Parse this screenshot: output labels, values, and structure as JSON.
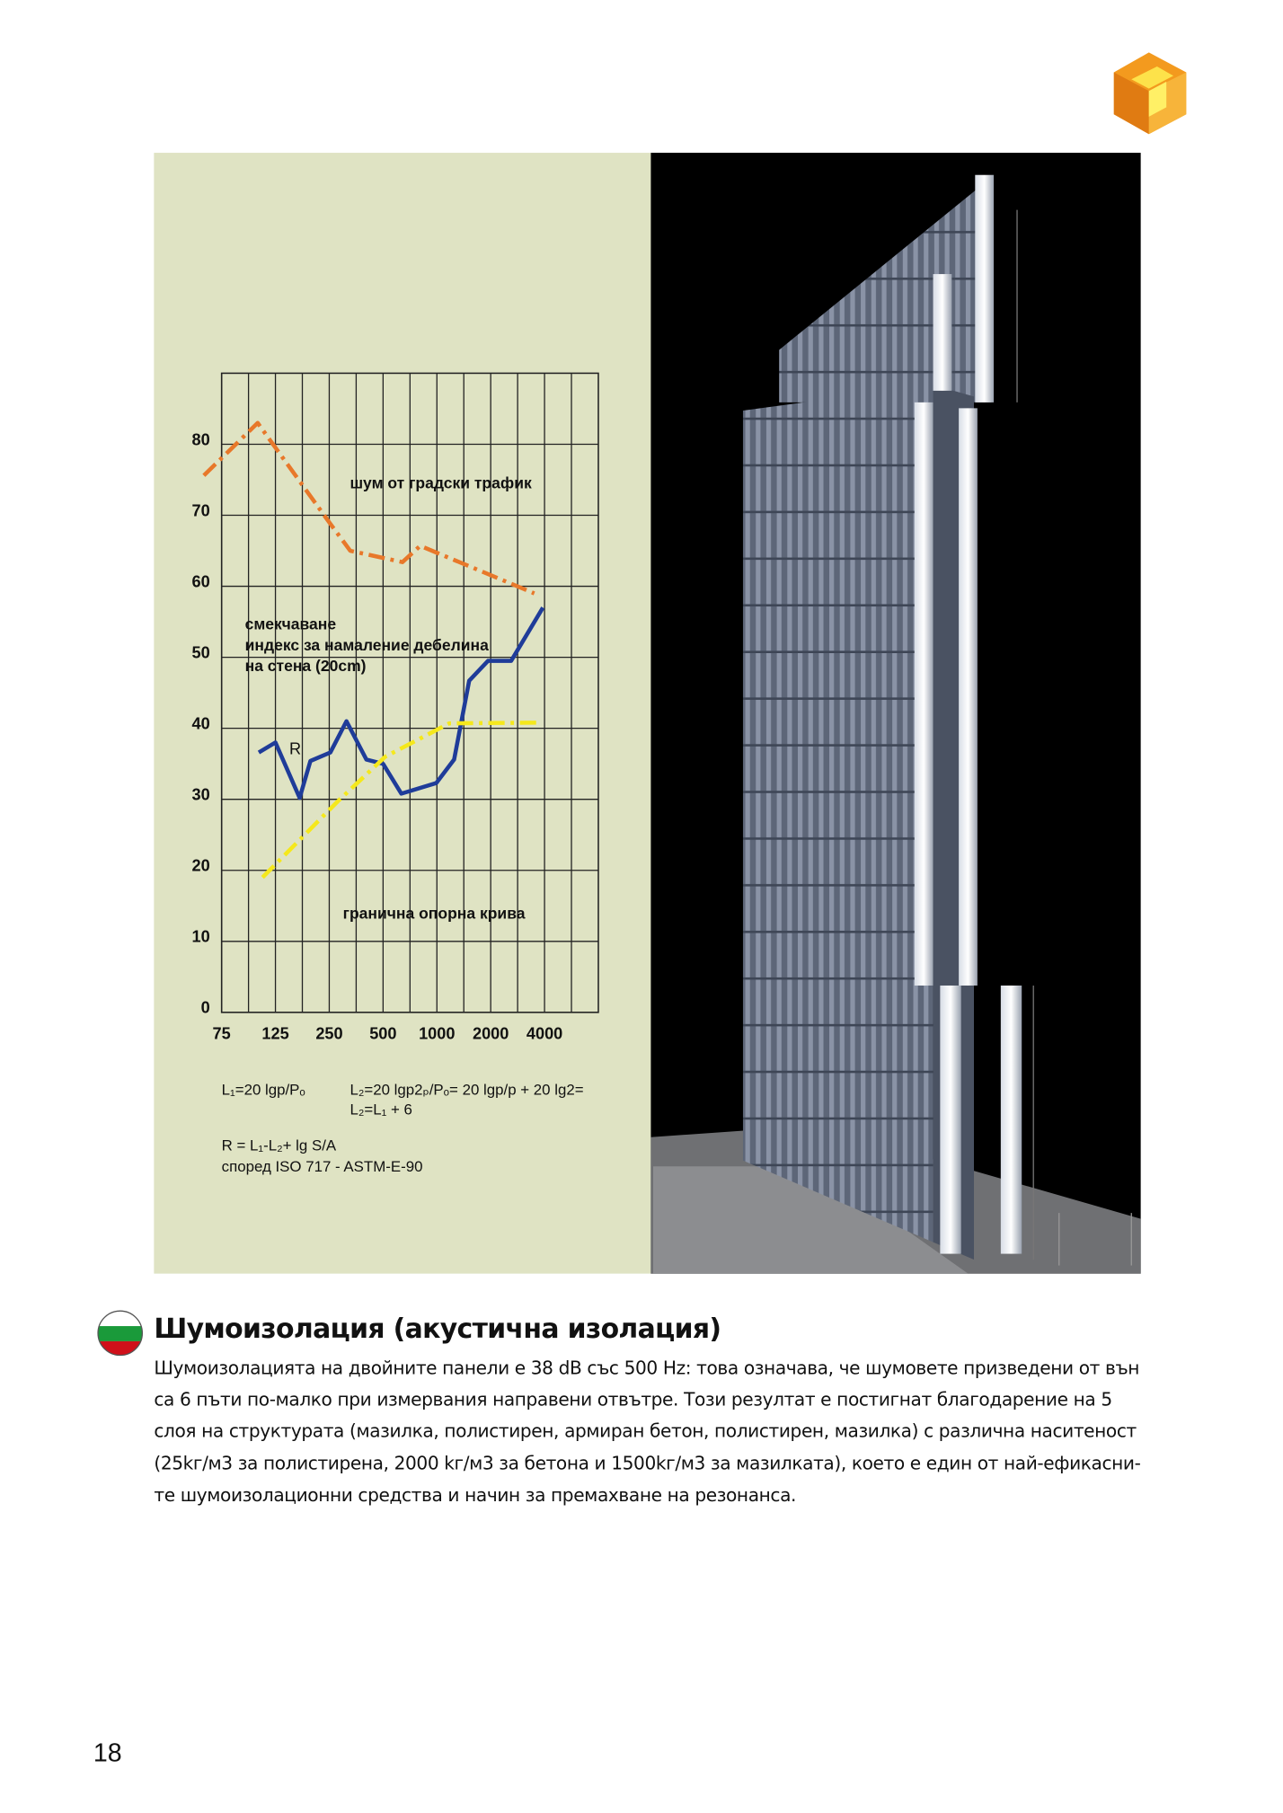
{
  "chart_data": {
    "type": "line",
    "xlim": [
      0,
      7
    ],
    "ylim": [
      0,
      90
    ],
    "xticks": [
      {
        "value": 0,
        "label": "75"
      },
      {
        "value": 1,
        "label": "125"
      },
      {
        "value": 2,
        "label": "250"
      },
      {
        "value": 3,
        "label": "500"
      },
      {
        "value": 4,
        "label": "1000"
      },
      {
        "value": 5,
        "label": "2000"
      },
      {
        "value": 6,
        "label": "4000"
      }
    ],
    "yticks": [
      0,
      10,
      20,
      30,
      40,
      50,
      60,
      70,
      80
    ],
    "grid": true,
    "series": [
      {
        "name": "шум от градски трафик",
        "color": "#e8782a",
        "style": "dash-dot",
        "x": [
          -0.33,
          0.67,
          2,
          2.39,
          3.36,
          3.69,
          5.81
        ],
        "values": [
          75.6,
          83,
          69,
          65,
          63.4,
          65.7,
          59
        ]
      },
      {
        "name": "R",
        "color": "#1f3c99",
        "style": "solid",
        "x": [
          0.69,
          1,
          1.45,
          1.65,
          2.02,
          2.32,
          2.69,
          3,
          3.34,
          3.99,
          4.32,
          4.6,
          4.95,
          5.38,
          5.97
        ],
        "values": [
          36.6,
          38,
          30.2,
          35.4,
          36.6,
          41,
          35.6,
          35,
          30.8,
          32.3,
          35.6,
          46.7,
          49.5,
          49.5,
          57
        ]
      },
      {
        "name": "гранична опорна крива",
        "color": "#f5e81c",
        "style": "dash-dot",
        "x": [
          0.76,
          2.17,
          3.04,
          4.23,
          5.92
        ],
        "values": [
          19,
          29.8,
          36,
          40.7,
          40.8
        ]
      }
    ],
    "annotations": [
      "смекчаване",
      "индекс за намаление дебелина",
      "на стена (20cm)"
    ],
    "formulas": [
      "L₁=20 lgp/Pₒ",
      "L₂=20 lgp2ₚ/Pₒ= 20 lgp/p + 20 lg2=",
      "L₂=L₁ + 6",
      "R = L₁-L₂+ lg S/A",
      "според ISO 717 - ASTM-E-90"
    ]
  },
  "section": {
    "heading": "Шумоизолация (акустична изолация)",
    "lines": [
      "Шумоизолацията на двойните панели е 38 dB със 500 Hz: това означава, че шумовете призведени от вън",
      "са 6 пъти по-малко при измервания направени отвътре. Този резултат е постигнат благодарение на 5",
      "слоя на структурата (мазилка, полистирен, армиран бетон, полистирен, мазилка) с различна наситеност",
      "(25kг/м3 за полистирена, 2000 kг/м3 за бетона и 1500kг/м3 за мазилката), което е един от най-ефикасни-",
      "те шумоизолационни средства и начин за премахване на резонанса."
    ]
  },
  "page_number": "18"
}
